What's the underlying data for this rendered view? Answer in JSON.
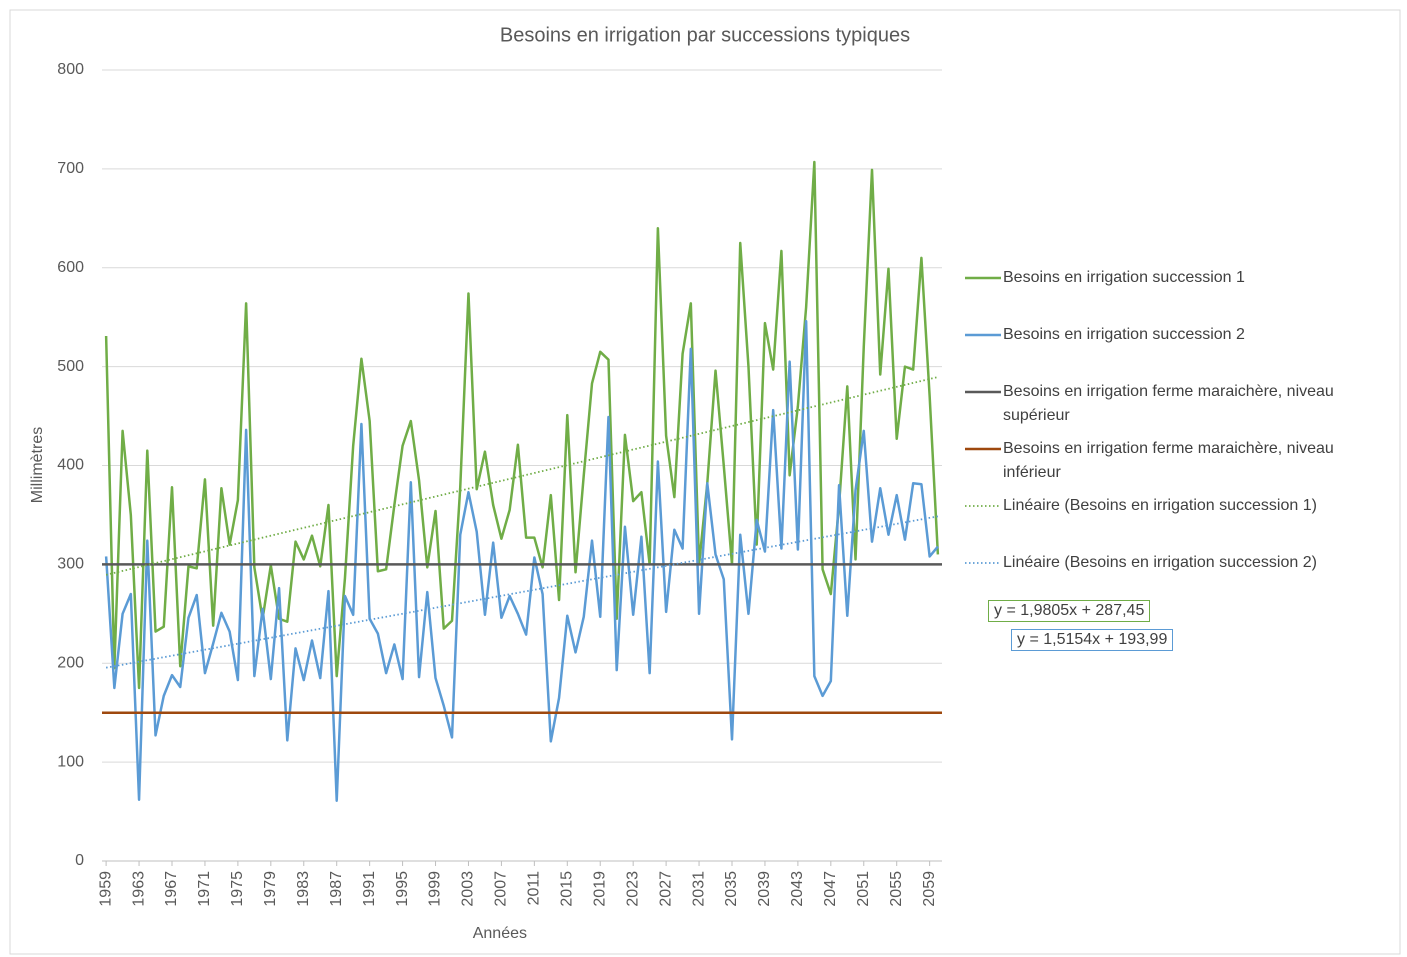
{
  "chart_data": {
    "type": "line",
    "title": "Besoins en irrigation par successions typiques",
    "x_label": "Années",
    "y_label": "Millimètres",
    "x": [
      1959,
      1960,
      1961,
      1962,
      1963,
      1964,
      1965,
      1966,
      1967,
      1968,
      1969,
      1970,
      1971,
      1972,
      1973,
      1974,
      1975,
      1976,
      1977,
      1978,
      1979,
      1980,
      1981,
      1982,
      1983,
      1984,
      1985,
      1986,
      1987,
      1988,
      1989,
      1990,
      1991,
      1992,
      1993,
      1994,
      1995,
      1996,
      1997,
      1998,
      1999,
      2000,
      2001,
      2002,
      2003,
      2004,
      2005,
      2006,
      2007,
      2008,
      2009,
      2010,
      2011,
      2012,
      2013,
      2014,
      2015,
      2016,
      2017,
      2018,
      2019,
      2020,
      2021,
      2022,
      2023,
      2024,
      2025,
      2026,
      2027,
      2028,
      2029,
      2030,
      2031,
      2032,
      2033,
      2034,
      2035,
      2036,
      2037,
      2038,
      2039,
      2040,
      2041,
      2042,
      2043,
      2044,
      2045,
      2046,
      2047,
      2048,
      2049,
      2050,
      2051,
      2052,
      2053,
      2054,
      2055,
      2056,
      2057,
      2058,
      2059,
      2060
    ],
    "xlim": [
      1958.5,
      2060.5
    ],
    "xticks": [
      1959,
      1963,
      1967,
      1971,
      1975,
      1979,
      1983,
      1987,
      1991,
      1995,
      1999,
      2003,
      2007,
      2011,
      2015,
      2019,
      2023,
      2027,
      2031,
      2035,
      2039,
      2043,
      2047,
      2051,
      2055,
      2059
    ],
    "ylim": [
      0,
      800
    ],
    "yticks": [
      0,
      100,
      200,
      300,
      400,
      500,
      600,
      700,
      800
    ],
    "grid": true,
    "legend": "right",
    "series": [
      {
        "name": "Besoins en irrigation succession 1",
        "color": "#70ad47",
        "values": [
          531,
          195,
          435,
          350,
          175,
          415,
          232,
          237,
          378,
          197,
          298,
          296,
          386,
          238,
          377,
          320,
          365,
          564,
          297,
          245,
          299,
          245,
          242,
          323,
          305,
          329,
          298,
          360,
          187,
          286,
          420,
          508,
          445,
          293,
          295,
          360,
          420,
          445,
          385,
          297,
          354,
          235,
          243,
          378,
          574,
          376,
          414,
          360,
          326,
          355,
          421,
          327,
          327,
          297,
          370,
          264,
          451,
          292,
          390,
          483,
          515,
          507,
          245,
          431,
          364,
          373,
          300,
          640,
          430,
          368,
          513,
          564,
          300,
          382,
          496,
          400,
          300,
          625,
          500,
          320,
          544,
          497,
          617,
          390,
          460,
          560,
          707,
          295,
          270,
          360,
          480,
          305,
          520,
          699,
          492,
          599,
          427,
          500,
          497,
          610,
          470,
          310
        ]
      },
      {
        "name": "Besoins en irrigation succession 2",
        "color": "#5b9bd5",
        "values": [
          308,
          175,
          250,
          270,
          62,
          324,
          127,
          167,
          188,
          176,
          246,
          269,
          190,
          220,
          251,
          232,
          183,
          436,
          187,
          255,
          184,
          276,
          122,
          215,
          183,
          223,
          185,
          273,
          61,
          268,
          249,
          442,
          245,
          230,
          190,
          219,
          184,
          383,
          186,
          272,
          185,
          157,
          125,
          330,
          373,
          333,
          249,
          322,
          246,
          268,
          250,
          229,
          307,
          270,
          121,
          165,
          248,
          211,
          247,
          324,
          247,
          449,
          193,
          338,
          249,
          328,
          190,
          404,
          252,
          335,
          316,
          518,
          250,
          382,
          310,
          285,
          123,
          330,
          250,
          345,
          313,
          456,
          316,
          505,
          315,
          546,
          187,
          167,
          182,
          380,
          248,
          375,
          435,
          323,
          377,
          330,
          370,
          325,
          382,
          381,
          308,
          318
        ]
      },
      {
        "name": "Besoins en irrigation ferme maraichère, niveau supérieur",
        "color": "#595959",
        "value": 300
      },
      {
        "name": "Besoins en irrigation ferme maraichère, niveau inférieur",
        "color": "#9e480e",
        "value": 150
      }
    ],
    "trendlines": [
      {
        "name": "Linéaire (Besoins en irrigation succession 1)",
        "color": "#70ad47",
        "slope": 1.9805,
        "intercept": 287.45,
        "equation": "y = 1,9805x + 287,45"
      },
      {
        "name": "Linéaire (Besoins en irrigation succession 2)",
        "color": "#5b9bd5",
        "slope": 1.5154,
        "intercept": 193.99,
        "equation": "y = 1,5154x + 193,99"
      }
    ]
  }
}
